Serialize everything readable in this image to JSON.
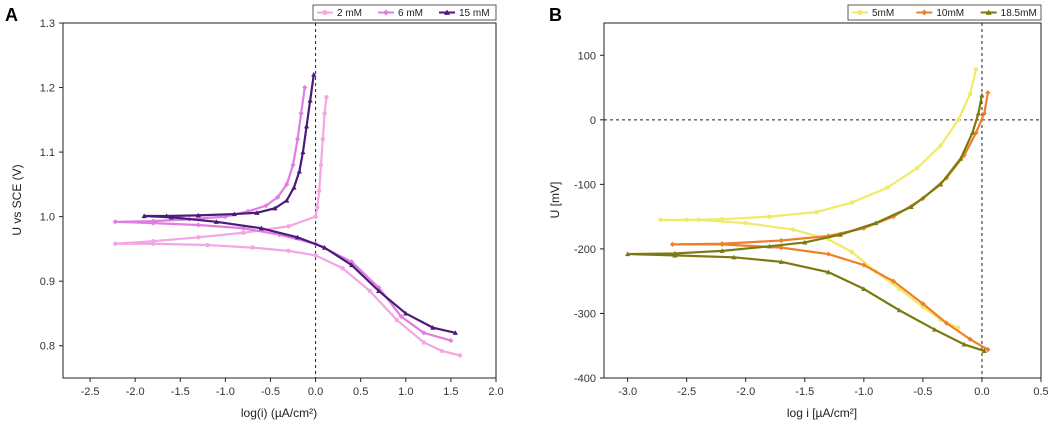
{
  "chart_data": [
    {
      "panel": "A",
      "type": "line",
      "xlabel": "log(i) (µA/cm²)",
      "ylabel": "U vs SCE (V)",
      "xlim": [
        -2.8,
        2.0
      ],
      "ylim": [
        0.75,
        1.3
      ],
      "xticks": [
        -2.5,
        -2.0,
        -1.5,
        -1.0,
        -0.5,
        0.0,
        0.5,
        1.0,
        1.5,
        2.0
      ],
      "yticks": [
        0.8,
        0.9,
        1.0,
        1.1,
        1.2,
        1.3
      ],
      "xtick_labels": [
        "-2.5",
        "-2.0",
        "-1.5",
        "-1.0",
        "-0.5",
        "0.0",
        "0.5",
        "1.0",
        "1.5",
        "2.0"
      ],
      "ytick_labels": [
        "0.8",
        "0.9",
        "1.0",
        "1.1",
        "1.2",
        "1.3"
      ],
      "vline": 0.0,
      "legend": [
        "2 mM",
        "6 mM",
        "15 mM"
      ],
      "series": [
        {
          "name": "2 mM",
          "color": "#f4a6e2",
          "marker": "circle",
          "x": [
            0.12,
            0.1,
            0.08,
            0.06,
            0.04,
            0.02,
            0.0,
            -0.3,
            -0.8,
            -1.3,
            -1.8,
            -2.22,
            -1.8,
            -1.2,
            -0.7,
            -0.3,
            0.0,
            0.3,
            0.6,
            0.9,
            1.2,
            1.4,
            1.6
          ],
          "y": [
            1.185,
            1.16,
            1.12,
            1.08,
            1.04,
            1.015,
            1.0,
            0.985,
            0.975,
            0.968,
            0.962,
            0.958,
            0.958,
            0.956,
            0.952,
            0.947,
            0.94,
            0.92,
            0.885,
            0.84,
            0.805,
            0.792,
            0.785
          ]
        },
        {
          "name": "6 mM",
          "color": "#e07ee0",
          "marker": "diamond",
          "x": [
            -0.12,
            -0.16,
            -0.2,
            -0.25,
            -0.32,
            -0.42,
            -0.55,
            -0.75,
            -1.0,
            -1.4,
            -1.8,
            -2.22,
            -1.8,
            -1.3,
            -0.8,
            -0.4,
            0.0,
            0.4,
            0.7,
            0.95,
            1.2,
            1.5
          ],
          "y": [
            1.2,
            1.16,
            1.12,
            1.08,
            1.05,
            1.03,
            1.017,
            1.008,
            1.0,
            0.996,
            0.993,
            0.992,
            0.99,
            0.987,
            0.982,
            0.972,
            0.958,
            0.93,
            0.89,
            0.845,
            0.82,
            0.808
          ]
        },
        {
          "name": "15 mM",
          "color": "#4b1a7a",
          "marker": "triangle",
          "x": [
            -0.02,
            -0.06,
            -0.1,
            -0.14,
            -0.18,
            -0.24,
            -0.32,
            -0.45,
            -0.65,
            -0.9,
            -1.3,
            -1.65,
            -1.9,
            -1.6,
            -1.1,
            -0.6,
            -0.2,
            0.1,
            0.4,
            0.7,
            1.0,
            1.3,
            1.55
          ],
          "y": [
            1.22,
            1.18,
            1.14,
            1.1,
            1.07,
            1.045,
            1.025,
            1.013,
            1.006,
            1.004,
            1.002,
            1.001,
            1.001,
            0.999,
            0.992,
            0.982,
            0.968,
            0.952,
            0.925,
            0.885,
            0.85,
            0.828,
            0.82
          ]
        }
      ]
    },
    {
      "panel": "B",
      "type": "line",
      "xlabel": "log i [µA/cm²]",
      "ylabel": "U [mV]",
      "xlim": [
        -3.2,
        0.5
      ],
      "ylim": [
        -400,
        150
      ],
      "xticks": [
        -3.0,
        -2.5,
        -2.0,
        -1.5,
        -1.0,
        -0.5,
        0.0,
        0.5
      ],
      "yticks": [
        -400,
        -300,
        -200,
        -100,
        0,
        100
      ],
      "xtick_labels": [
        "-3.0",
        "-2.5",
        "-2.0",
        "-1.5",
        "-1.0",
        "-0.5",
        "0.0",
        "0.5"
      ],
      "ytick_labels": [
        "-400",
        "-300",
        "-200",
        "-100",
        "0",
        "100"
      ],
      "vline": 0.0,
      "hline": 0,
      "legend": [
        "5mM",
        "10mM",
        "18.5mM"
      ],
      "series": [
        {
          "name": "5mM",
          "color": "#f0ea6a",
          "marker": "circle",
          "x": [
            -0.05,
            -0.1,
            -0.2,
            -0.35,
            -0.55,
            -0.8,
            -1.1,
            -1.4,
            -1.8,
            -2.2,
            -2.5,
            -2.72,
            -2.4,
            -2.0,
            -1.6,
            -1.3,
            -1.1,
            -0.9,
            -0.7,
            -0.5,
            -0.35,
            -0.2
          ],
          "y": [
            78,
            40,
            0,
            -40,
            -75,
            -105,
            -128,
            -143,
            -150,
            -154,
            -155,
            -155,
            -155,
            -160,
            -170,
            -185,
            -205,
            -235,
            -262,
            -290,
            -310,
            -322
          ]
        },
        {
          "name": "10mM",
          "color": "#f07f2a",
          "marker": "diamond",
          "x": [
            0.05,
            0.02,
            -0.05,
            -0.15,
            -0.3,
            -0.5,
            -0.75,
            -1.0,
            -1.3,
            -1.7,
            -2.2,
            -2.62,
            -2.2,
            -1.7,
            -1.3,
            -1.0,
            -0.75,
            -0.5,
            -0.3,
            -0.1,
            0.05
          ],
          "y": [
            42,
            10,
            -20,
            -55,
            -90,
            -122,
            -150,
            -168,
            -180,
            -187,
            -192,
            -193,
            -193,
            -198,
            -208,
            -225,
            -250,
            -285,
            -315,
            -340,
            -356
          ]
        },
        {
          "name": "18.5mM",
          "color": "#7a7a10",
          "marker": "triangle",
          "x": [
            0.0,
            -0.03,
            -0.08,
            -0.18,
            -0.35,
            -0.6,
            -0.9,
            -1.2,
            -1.5,
            -1.8,
            -2.2,
            -2.6,
            -3.0,
            -2.6,
            -2.1,
            -1.7,
            -1.3,
            -1.0,
            -0.7,
            -0.4,
            -0.15,
            0.02
          ],
          "y": [
            38,
            10,
            -20,
            -60,
            -100,
            -135,
            -160,
            -178,
            -190,
            -196,
            -203,
            -207,
            -208,
            -210,
            -213,
            -220,
            -236,
            -262,
            -295,
            -325,
            -348,
            -358
          ]
        }
      ]
    }
  ],
  "panels": {
    "a_letter": "A",
    "b_letter": "B"
  }
}
